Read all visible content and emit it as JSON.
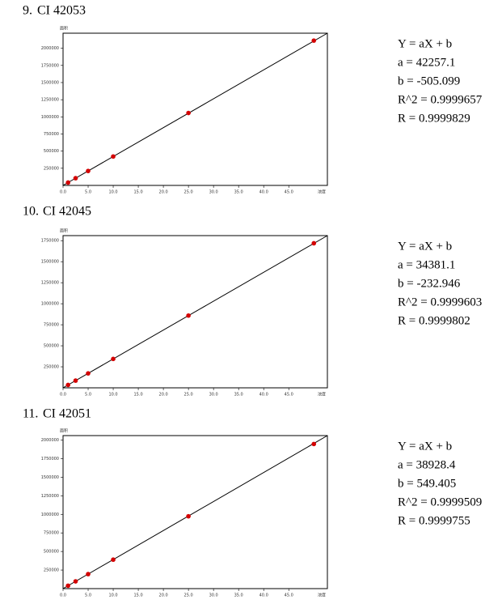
{
  "chart_data": [
    {
      "type": "scatter",
      "number": "9.",
      "title": "CI 42053",
      "xlabel": "浓度",
      "ylabel": "面积",
      "x": [
        1,
        2.5,
        5,
        10,
        25,
        50
      ],
      "values": [
        41752,
        105138,
        210780,
        422066,
        1055922,
        2112350
      ],
      "color": "#d40000",
      "xlim": [
        0,
        52.7
      ],
      "ylim": [
        0,
        2220000
      ],
      "xticks": [
        {
          "value": 0,
          "label": "0.0"
        },
        {
          "value": 5,
          "label": "5.0"
        },
        {
          "value": 10,
          "label": "10.0"
        },
        {
          "value": 15,
          "label": "15.0"
        },
        {
          "value": 20,
          "label": "20.0"
        },
        {
          "value": 25,
          "label": "25.0"
        },
        {
          "value": 30,
          "label": "30.0"
        },
        {
          "value": 35,
          "label": "35.0"
        },
        {
          "value": 40,
          "label": "40.0"
        },
        {
          "value": 45,
          "label": "45.0"
        }
      ],
      "yticks": [
        250000,
        500000,
        750000,
        1000000,
        1250000,
        1500000,
        1750000,
        2000000
      ],
      "annotations": [
        "Y = aX + b",
        "a = 42257.1",
        "b = -505.099",
        "R^2 = 0.9999657",
        "R = 0.9999829"
      ]
    },
    {
      "type": "scatter",
      "number": "10.",
      "title": "CI 42045",
      "xlabel": "浓度",
      "ylabel": "面积",
      "x": [
        1,
        2.5,
        5,
        10,
        25,
        50
      ],
      "values": [
        34149,
        85720,
        171673,
        343578,
        859295,
        1718822
      ],
      "color": "#d40000",
      "xlim": [
        0,
        52.7
      ],
      "ylim": [
        0,
        1810000
      ],
      "xticks": [
        {
          "value": 0,
          "label": "0.0"
        },
        {
          "value": 5,
          "label": "5.0"
        },
        {
          "value": 10,
          "label": "10.0"
        },
        {
          "value": 15,
          "label": "15.0"
        },
        {
          "value": 20,
          "label": "20.0"
        },
        {
          "value": 25,
          "label": "25.0"
        },
        {
          "value": 30,
          "label": "30.0"
        },
        {
          "value": 35,
          "label": "35.0"
        },
        {
          "value": 40,
          "label": "40.0"
        },
        {
          "value": 45,
          "label": "45.0"
        }
      ],
      "yticks": [
        250000,
        500000,
        750000,
        1000000,
        1250000,
        1500000,
        1750000
      ],
      "annotations": [
        "Y = aX + b",
        "a = 34381.1",
        "b = -232.946",
        "R^2 = 0.9999603",
        "R = 0.9999802"
      ]
    },
    {
      "type": "scatter",
      "number": "11.",
      "title": "CI 42051",
      "xlabel": "浓度",
      "ylabel": "面积",
      "x": [
        1,
        2.5,
        5,
        10,
        25,
        50
      ],
      "values": [
        39478,
        97870,
        195191,
        389833,
        973759,
        1946969
      ],
      "color": "#d40000",
      "xlim": [
        0,
        52.7
      ],
      "ylim": [
        0,
        2060000
      ],
      "xticks": [
        {
          "value": 0,
          "label": "0.0"
        },
        {
          "value": 5,
          "label": "5.0"
        },
        {
          "value": 10,
          "label": "10.0"
        },
        {
          "value": 15,
          "label": "15.0"
        },
        {
          "value": 20,
          "label": "20.0"
        },
        {
          "value": 25,
          "label": "25.0"
        },
        {
          "value": 30,
          "label": "30.0"
        },
        {
          "value": 35,
          "label": "35.0"
        },
        {
          "value": 40,
          "label": "40.0"
        },
        {
          "value": 45,
          "label": "45.0"
        }
      ],
      "yticks": [
        250000,
        500000,
        750000,
        1000000,
        1250000,
        1500000,
        1750000,
        2000000
      ],
      "annotations": [
        "Y = aX + b",
        "a = 38928.4",
        "b = 549.405",
        "R^2 = 0.9999509",
        "R = 0.9999755"
      ]
    }
  ]
}
